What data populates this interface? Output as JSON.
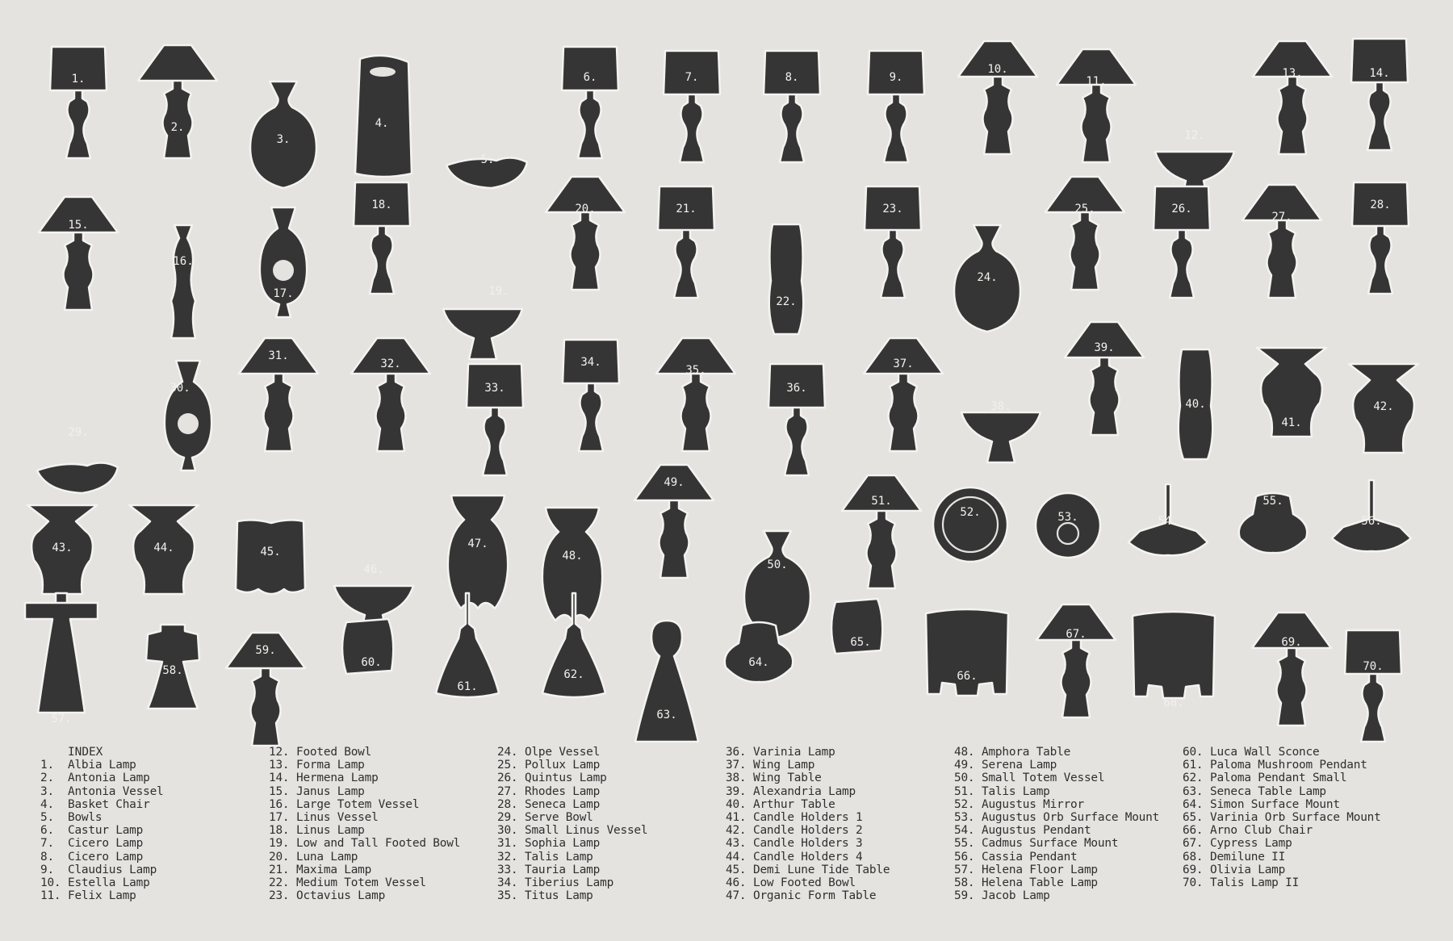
{
  "index_title": "INDEX",
  "items": [
    {
      "n": "1.",
      "name": "Albia Lamp",
      "shape": "lampA"
    },
    {
      "n": "2.",
      "name": "Antonia Lamp",
      "shape": "lampC"
    },
    {
      "n": "3.",
      "name": "Antonia Vessel",
      "shape": "vesselRound"
    },
    {
      "n": "4.",
      "name": "Basket Chair",
      "shape": "chairTall"
    },
    {
      "n": "5.",
      "name": "Bowls",
      "shape": "bowlLow"
    },
    {
      "n": "6.",
      "name": "Castur Lamp",
      "shape": "lampA"
    },
    {
      "n": "7.",
      "name": "Cicero Lamp",
      "shape": "lampA"
    },
    {
      "n": "8.",
      "name": "Cicero Lamp",
      "shape": "lampA"
    },
    {
      "n": "9.",
      "name": "Claudius Lamp",
      "shape": "lampA"
    },
    {
      "n": "10.",
      "name": "Estella Lamp",
      "shape": "lampC"
    },
    {
      "n": "11.",
      "name": "Felix Lamp",
      "shape": "lampC"
    },
    {
      "n": "12.",
      "name": "Footed Bowl",
      "shape": "footedBowl"
    },
    {
      "n": "13.",
      "name": "Forma Lamp",
      "shape": "lampC"
    },
    {
      "n": "14.",
      "name": "Hermena Lamp",
      "shape": "lampA"
    },
    {
      "n": "15.",
      "name": "Janus Lamp",
      "shape": "lampC"
    },
    {
      "n": "16.",
      "name": "Large Totem Vessel",
      "shape": "totemThin"
    },
    {
      "n": "17.",
      "name": "Linus Vessel",
      "shape": "vesselRing"
    },
    {
      "n": "18.",
      "name": "Linus Lamp",
      "shape": "lampA"
    },
    {
      "n": "19.",
      "name": "Low and Tall Footed Bowl",
      "shape": "footedBowl"
    },
    {
      "n": "20.",
      "name": "Luna Lamp",
      "shape": "lampC"
    },
    {
      "n": "21.",
      "name": "Maxima Lamp",
      "shape": "lampA"
    },
    {
      "n": "22.",
      "name": "Medium Totem Vessel",
      "shape": "vesselTall"
    },
    {
      "n": "23.",
      "name": "Octavius Lamp",
      "shape": "lampA"
    },
    {
      "n": "24.",
      "name": "Olpe Vessel",
      "shape": "vesselRound"
    },
    {
      "n": "25.",
      "name": "Pollux Lamp",
      "shape": "lampC"
    },
    {
      "n": "26.",
      "name": "Quintus Lamp",
      "shape": "lampA"
    },
    {
      "n": "27.",
      "name": "Rhodes Lamp",
      "shape": "lampC"
    },
    {
      "n": "28.",
      "name": "Seneca Lamp",
      "shape": "lampA"
    },
    {
      "n": "29.",
      "name": "Serve Bowl",
      "shape": "bowlLow"
    },
    {
      "n": "30.",
      "name": "Small Linus Vessel",
      "shape": "vesselRing"
    },
    {
      "n": "31.",
      "name": "Sophia Lamp",
      "shape": "lampC"
    },
    {
      "n": "32.",
      "name": "Talis Lamp",
      "shape": "lampC"
    },
    {
      "n": "33.",
      "name": "Tauria Lamp",
      "shape": "lampA"
    },
    {
      "n": "34.",
      "name": "Tiberius Lamp",
      "shape": "lampA"
    },
    {
      "n": "35.",
      "name": "Titus Lamp",
      "shape": "lampC"
    },
    {
      "n": "36.",
      "name": "Varinia Lamp",
      "shape": "lampA"
    },
    {
      "n": "37.",
      "name": "Wing Lamp",
      "shape": "lampC"
    },
    {
      "n": "38.",
      "name": "Wing Table",
      "shape": "footedBowl"
    },
    {
      "n": "39.",
      "name": "Alexandria Lamp",
      "shape": "lampC"
    },
    {
      "n": "40.",
      "name": "Arthur Table",
      "shape": "vesselTall"
    },
    {
      "n": "41.",
      "name": "Candle Holders 1",
      "shape": "candle"
    },
    {
      "n": "42.",
      "name": "Candle Holders 2",
      "shape": "candle"
    },
    {
      "n": "43.",
      "name": "Candle Holders 3",
      "shape": "candle"
    },
    {
      "n": "44.",
      "name": "Candle Holders 4",
      "shape": "candle"
    },
    {
      "n": "45.",
      "name": "Demi Lune Tide Table",
      "shape": "block"
    },
    {
      "n": "46.",
      "name": "Low Footed Bowl",
      "shape": "footedBowl"
    },
    {
      "n": "47.",
      "name": "Organic Form Table",
      "shape": "organic"
    },
    {
      "n": "48.",
      "name": "Amphora Table",
      "shape": "organic"
    },
    {
      "n": "49.",
      "name": "Serena Lamp",
      "shape": "lampC"
    },
    {
      "n": "50.",
      "name": "Small Totem Vessel",
      "shape": "vesselRound"
    },
    {
      "n": "51.",
      "name": "Talis Lamp",
      "shape": "lampC"
    },
    {
      "n": "52.",
      "name": "Augustus Mirror",
      "shape": "mirror"
    },
    {
      "n": "53.",
      "name": "Augustus Orb Surface Mount",
      "shape": "orbMount"
    },
    {
      "n": "54.",
      "name": "Augustus Pendant",
      "shape": "pendantFlat"
    },
    {
      "n": "55.",
      "name": "Cadmus Surface Mount",
      "shape": "surfaceMount"
    },
    {
      "n": "56.",
      "name": "Cassia Pendant",
      "shape": "pendantFlat"
    },
    {
      "n": "57.",
      "name": "Helena Floor Lamp",
      "shape": "floorLamp"
    },
    {
      "n": "58.",
      "name": "Helena Table Lamp",
      "shape": "mushroomLamp"
    },
    {
      "n": "59.",
      "name": "Jacob Lamp",
      "shape": "lampC"
    },
    {
      "n": "60.",
      "name": "Luca Wall Sconce",
      "shape": "sconce"
    },
    {
      "n": "61.",
      "name": "Paloma Mushroom Pendant",
      "shape": "pendantCone"
    },
    {
      "n": "62.",
      "name": "Paloma Pendant Small",
      "shape": "pendantCone"
    },
    {
      "n": "63.",
      "name": "Seneca Table Lamp",
      "shape": "cone"
    },
    {
      "n": "64.",
      "name": "Simon Surface Mount",
      "shape": "surfaceMount"
    },
    {
      "n": "65.",
      "name": "Varinia Orb Surface Mount",
      "shape": "sconce"
    },
    {
      "n": "66.",
      "name": "Arno Club Chair",
      "shape": "clubChair"
    },
    {
      "n": "67.",
      "name": "Cypress Lamp",
      "shape": "lampC"
    },
    {
      "n": "68.",
      "name": "Demilune II",
      "shape": "clubChair"
    },
    {
      "n": "69.",
      "name": "Olivia Lamp",
      "shape": "lampC"
    },
    {
      "n": "70.",
      "name": "Talis Lamp II",
      "shape": "lampA"
    }
  ]
}
